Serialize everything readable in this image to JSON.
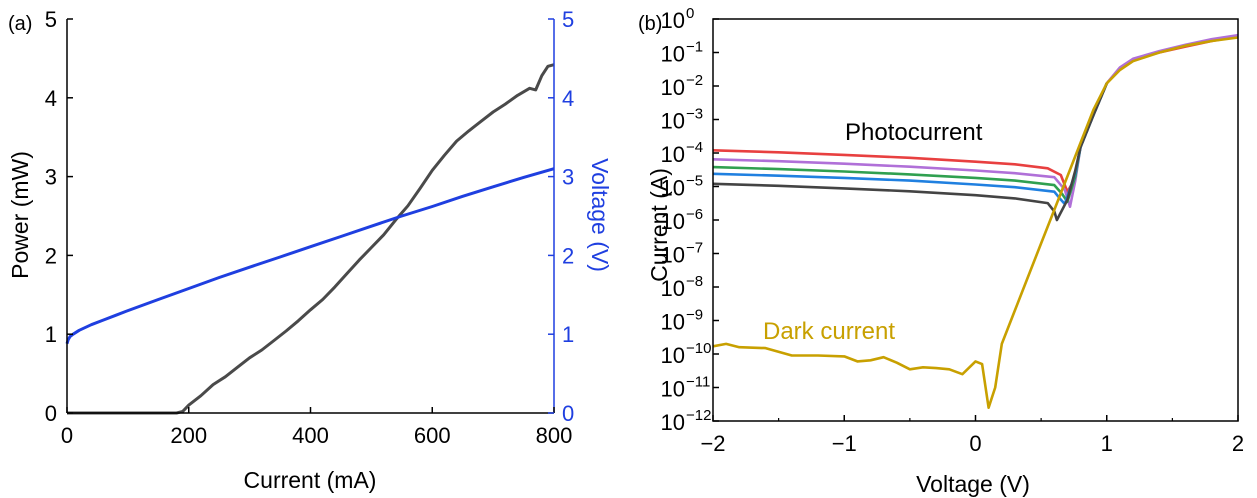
{
  "chart_data": [
    {
      "panel": "(a)",
      "type": "line",
      "title": "",
      "xlabel": "Current (mA)",
      "ylabel": "Power (mW)",
      "y2label": "Voltage (V)",
      "xlim": [
        0,
        800
      ],
      "ylim": [
        0,
        5
      ],
      "y2lim": [
        0,
        5
      ],
      "xticks": [
        0,
        200,
        400,
        600,
        800
      ],
      "yticks": [
        0,
        1,
        2,
        3,
        4,
        5
      ],
      "y2ticks": [
        0,
        1,
        2,
        3,
        4,
        5
      ],
      "grid": false,
      "colors": {
        "power": "#4a4a4a",
        "voltage": "#1f3fe0"
      },
      "series": [
        {
          "axis": "left",
          "x": [
            0,
            100,
            150,
            180,
            190,
            200,
            220,
            240,
            260,
            280,
            300,
            320,
            340,
            360,
            380,
            400,
            420,
            440,
            460,
            480,
            500,
            520,
            540,
            560,
            580,
            600,
            620,
            640,
            660,
            680,
            700,
            720,
            740,
            760,
            770,
            780,
            790,
            800
          ],
          "values": [
            0,
            0,
            0,
            0,
            0.02,
            0.1,
            0.22,
            0.36,
            0.46,
            0.58,
            0.7,
            0.8,
            0.92,
            1.04,
            1.17,
            1.31,
            1.44,
            1.6,
            1.77,
            1.94,
            2.1,
            2.26,
            2.45,
            2.63,
            2.85,
            3.08,
            3.27,
            3.45,
            3.58,
            3.7,
            3.82,
            3.92,
            4.03,
            4.12,
            4.1,
            4.28,
            4.4,
            4.42
          ]
        },
        {
          "axis": "right",
          "x": [
            0,
            2,
            5,
            10,
            20,
            40,
            60,
            80,
            100,
            150,
            200,
            250,
            300,
            350,
            400,
            450,
            500,
            550,
            600,
            650,
            700,
            750,
            800
          ],
          "values": [
            0.88,
            0.93,
            0.97,
            1.0,
            1.05,
            1.12,
            1.18,
            1.24,
            1.3,
            1.44,
            1.58,
            1.72,
            1.85,
            1.98,
            2.11,
            2.24,
            2.37,
            2.5,
            2.62,
            2.75,
            2.87,
            2.99,
            3.1
          ]
        }
      ]
    },
    {
      "panel": "(b)",
      "type": "line",
      "title": "",
      "xlabel": "Voltage (V)",
      "ylabel": "Current (A)",
      "xlim": [
        -2,
        2
      ],
      "ylim": [
        1e-12,
        1
      ],
      "yscale": "log",
      "xticks": [
        -2,
        -1,
        0,
        1,
        2
      ],
      "ytick_exponents": [
        0,
        -1,
        -2,
        -3,
        -4,
        -5,
        -6,
        -7,
        -8,
        -9,
        -10,
        -11,
        -12
      ],
      "ytick_base": "10",
      "grid": false,
      "annotations": [
        {
          "text": "Photocurrent",
          "color": "#000000"
        },
        {
          "text": "Dark current",
          "color": "#c8a000"
        }
      ],
      "series": [
        {
          "color": "#e84040",
          "x": [
            -2,
            -1.5,
            -1,
            -0.5,
            0,
            0.3,
            0.55,
            0.65,
            0.7,
            0.75,
            0.8,
            0.9,
            1.0,
            1.1,
            1.2,
            1.4,
            1.6,
            1.8,
            2.0
          ],
          "values": [
            0.00012,
            0.000105,
            8.8e-05,
            7.2e-05,
            5.5e-05,
            4.6e-05,
            3.5e-05,
            2.2e-05,
            7e-06,
            1.5e-05,
            0.00015,
            0.0014,
            0.012,
            0.035,
            0.06,
            0.1,
            0.15,
            0.22,
            0.3
          ]
        },
        {
          "color": "#b070d8",
          "x": [
            -2,
            -1.5,
            -1,
            -0.5,
            0,
            0.3,
            0.6,
            0.68,
            0.72,
            0.76,
            0.8,
            0.9,
            1.0,
            1.1,
            1.2,
            1.4,
            1.6,
            1.8,
            2.0
          ],
          "values": [
            6.5e-05,
            5.7e-05,
            4.8e-05,
            3.9e-05,
            3e-05,
            2.5e-05,
            1.9e-05,
            8e-06,
            2.5e-06,
            1.5e-05,
            0.00015,
            0.0014,
            0.012,
            0.036,
            0.065,
            0.11,
            0.17,
            0.25,
            0.33
          ]
        },
        {
          "color": "#30a050",
          "x": [
            -2,
            -1.5,
            -1,
            -0.5,
            0,
            0.3,
            0.6,
            0.66,
            0.7,
            0.76,
            0.8,
            0.9,
            1.0
          ],
          "values": [
            3.8e-05,
            3.3e-05,
            2.8e-05,
            2.3e-05,
            1.8e-05,
            1.5e-05,
            1.1e-05,
            6e-06,
            3.5e-06,
            2e-05,
            0.00015,
            0.0014,
            0.012
          ]
        },
        {
          "color": "#2080e0",
          "x": [
            -2,
            -1.5,
            -1,
            -0.5,
            0,
            0.3,
            0.6,
            0.64,
            0.68,
            0.76,
            0.8,
            0.9,
            1.0
          ],
          "values": [
            2.4e-05,
            2.1e-05,
            1.8e-05,
            1.5e-05,
            1.15e-05,
            9.5e-06,
            7e-06,
            4.5e-06,
            3e-06,
            2.5e-05,
            0.00015,
            0.0014,
            0.012
          ]
        },
        {
          "color": "#444444",
          "x": [
            -2,
            -1.5,
            -1,
            -0.5,
            0,
            0.3,
            0.55,
            0.6,
            0.62,
            0.7,
            0.76,
            0.8,
            0.9,
            1.0
          ],
          "values": [
            1.2e-05,
            1.05e-05,
            8.8e-06,
            7.2e-06,
            5.5e-06,
            4.4e-06,
            3.2e-06,
            1.8e-06,
            1e-06,
            4e-06,
            3e-05,
            0.00015,
            0.0014,
            0.012
          ]
        },
        {
          "color": "#c8a000",
          "x": [
            -2,
            -1.9,
            -1.8,
            -1.6,
            -1.4,
            -1.2,
            -1.0,
            -0.9,
            -0.8,
            -0.7,
            -0.6,
            -0.5,
            -0.4,
            -0.3,
            -0.2,
            -0.1,
            0.0,
            0.05,
            0.1,
            0.15,
            0.2,
            0.3,
            0.4,
            0.5,
            0.6,
            0.7,
            0.8,
            0.9,
            1.0,
            1.1,
            1.2,
            1.4,
            1.6,
            1.8,
            2.0
          ],
          "values": [
            1.7e-10,
            2e-10,
            1.6e-10,
            1.5e-10,
            9e-11,
            9e-11,
            8.5e-11,
            6e-11,
            6.5e-11,
            8e-11,
            5.5e-11,
            3.5e-11,
            4e-11,
            3.8e-11,
            3.5e-11,
            2.5e-11,
            6e-11,
            5e-11,
            2.5e-12,
            1e-11,
            2e-10,
            2e-09,
            2e-08,
            2e-07,
            2e-06,
            2e-05,
            0.0002,
            0.002,
            0.012,
            0.03,
            0.055,
            0.1,
            0.16,
            0.22,
            0.28
          ]
        }
      ]
    }
  ]
}
